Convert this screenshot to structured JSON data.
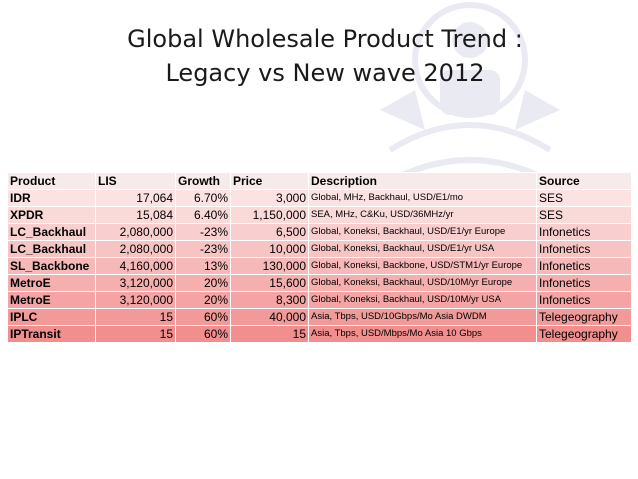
{
  "title": {
    "line1": "Global Wholesale Product Trend :",
    "line2": "Legacy vs New wave 2012"
  },
  "table": {
    "headers": [
      "Product",
      "LIS",
      "Growth",
      "Price",
      "Description",
      "Source"
    ],
    "rows": [
      {
        "product": "IDR",
        "lis": "17,064",
        "growth": "6.70%",
        "price": "3,000",
        "description": "Global, MHz, Backhaul, USD/E1/mo",
        "source": "SES"
      },
      {
        "product": "XPDR",
        "lis": "15,084",
        "growth": "6.40%",
        "price": "1,150,000",
        "description": "SEA, MHz, C&Ku, USD/36MHz/yr",
        "source": "SES"
      },
      {
        "product": "LC_Backhaul",
        "lis": "2,080,000",
        "growth": "-23%",
        "price": "6,500",
        "description": "Global, Koneksi, Backhaul, USD/E1/yr Europe",
        "source": "Infonetics"
      },
      {
        "product": "LC_Backhaul",
        "lis": "2,080,000",
        "growth": "-23%",
        "price": "10,000",
        "description": "Global, Koneksi, Backhaul, USD/E1/yr USA",
        "source": "Infonetics"
      },
      {
        "product": "SL_Backbone",
        "lis": "4,160,000",
        "growth": "13%",
        "price": "130,000",
        "description": "Global, Koneksi, Backbone, USD/STM1/yr Europe",
        "source": "Infonetics"
      },
      {
        "product": "MetroE",
        "lis": "3,120,000",
        "growth": "20%",
        "price": "15,600",
        "description": "Global, Koneksi, Backhaul, USD/10M/yr Europe",
        "source": "Infonetics"
      },
      {
        "product": "MetroE",
        "lis": "3,120,000",
        "growth": "20%",
        "price": "8,300",
        "description": "Global, Koneksi, Backhaul, USD/10M/yr USA",
        "source": "Infonetics"
      },
      {
        "product": "IPLC",
        "lis": "15",
        "growth": "60%",
        "price": "40,000",
        "description": "Asia, Tbps, USD/10Gbps/Mo Asia DWDM",
        "source": "Telegeography"
      },
      {
        "product": "IPTransit",
        "lis": "15",
        "growth": "60%",
        "price": "15",
        "description": "Asia, Tbps, USD/Mbps/Mo Asia 10 Gbps",
        "source": "Telegeography"
      }
    ]
  },
  "colors": {
    "header_bg": "#f7eaea",
    "row_gradient_top": "#fbe3e3",
    "row_gradient_bottom": "#f18f8f"
  },
  "icons": {
    "watermark": "university-seal-icon"
  }
}
